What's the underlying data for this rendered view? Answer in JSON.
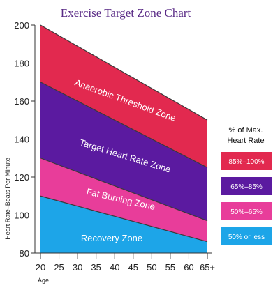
{
  "chart_data": {
    "type": "area",
    "title": "Exercise Target Zone Chart",
    "xlabel": "Age",
    "ylabel": "Heart Rate–Beats Per Minute",
    "x_ticks": [
      "20",
      "25",
      "30",
      "35",
      "40",
      "45",
      "50",
      "55",
      "60",
      "65+"
    ],
    "y_ticks": [
      80,
      100,
      120,
      140,
      160,
      180,
      200
    ],
    "ylim": [
      80,
      200
    ],
    "x": [
      20,
      65
    ],
    "boundaries": [
      {
        "name": "Max",
        "values": [
          200,
          150
        ]
      },
      {
        "name": "85%",
        "values": [
          170,
          125
        ]
      },
      {
        "name": "65%",
        "values": [
          130,
          97
        ]
      },
      {
        "name": "50%",
        "values": [
          110,
          86
        ]
      }
    ],
    "zones": [
      {
        "label": "Anaerobic Threshold Zone",
        "color": "#e2294f"
      },
      {
        "label": "Target Heart Rate Zone",
        "color": "#5b1aa0"
      },
      {
        "label": "Fat Burning Zone",
        "color": "#e83d9a"
      },
      {
        "label": "Recovery Zone",
        "color": "#1da5e8"
      }
    ],
    "legend": {
      "title_lines": [
        "% of Max.",
        "Heart Rate"
      ],
      "items": [
        {
          "label": "85%–100%",
          "color": "#e2294f"
        },
        {
          "label": "65%–85%",
          "color": "#5b1aa0"
        },
        {
          "label": "50%–65%",
          "color": "#e83d9a"
        },
        {
          "label": "50% or less",
          "color": "#1da5e8"
        }
      ],
      "placement": "right"
    }
  }
}
